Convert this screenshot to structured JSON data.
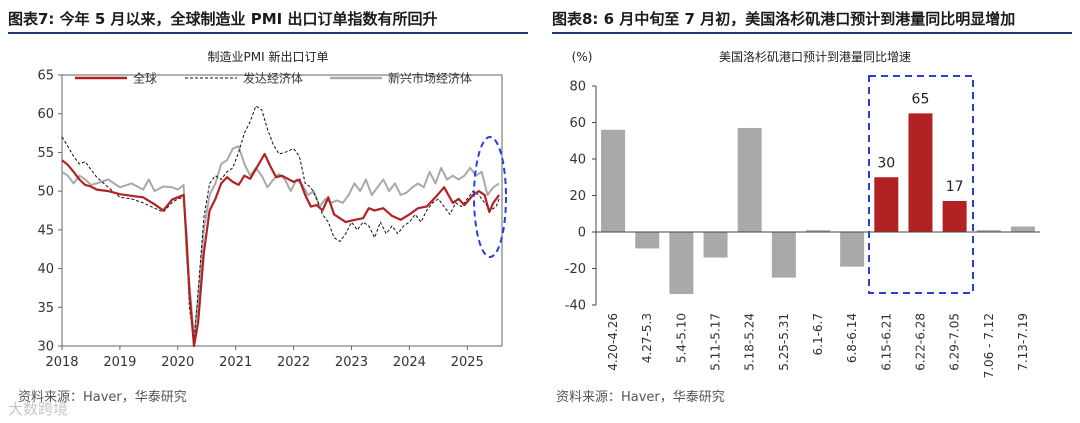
{
  "left_panel": {
    "title": "图表7:   今年 5 月以来，全球制造业 PMI 出口订单指数有所回升",
    "source": "资料来源：Haver，华泰研究"
  },
  "right_panel": {
    "title": "图表8:   6 月中旬至 7 月初，美国洛杉矶港口预计到港量同比明显增加",
    "source": "资料来源：Haver，华泰研究"
  },
  "watermark": "大数跨境",
  "chart_data": [
    {
      "type": "line",
      "title": "制造业PMI 新出口订单",
      "xlabel": "",
      "ylabel": "",
      "ylim": [
        30,
        65
      ],
      "yticks": [
        30,
        35,
        40,
        45,
        50,
        55,
        60,
        65
      ],
      "xlim": [
        2018,
        2025.6
      ],
      "xticks": [
        2018,
        2019,
        2020,
        2021,
        2022,
        2023,
        2024,
        2025
      ],
      "legend_position": "top",
      "annotations": [
        "blue dashed ellipse around 2025 recovery"
      ],
      "series": [
        {
          "name": "全球",
          "color": "#b22222",
          "style": "solid",
          "points": [
            [
              2018.0,
              54.0
            ],
            [
              2018.1,
              53.4
            ],
            [
              2018.2,
              52.5
            ],
            [
              2018.3,
              51.5
            ],
            [
              2018.4,
              50.8
            ],
            [
              2018.5,
              50.6
            ],
            [
              2018.6,
              50.2
            ],
            [
              2018.8,
              50.0
            ],
            [
              2019.0,
              49.6
            ],
            [
              2019.2,
              49.4
            ],
            [
              2019.4,
              49.2
            ],
            [
              2019.6,
              48.3
            ],
            [
              2019.75,
              47.5
            ],
            [
              2019.9,
              48.9
            ],
            [
              2020.0,
              49.2
            ],
            [
              2020.1,
              49.5
            ],
            [
              2020.15,
              44.0
            ],
            [
              2020.2,
              37.0
            ],
            [
              2020.28,
              29.5
            ],
            [
              2020.35,
              33.0
            ],
            [
              2020.45,
              42.0
            ],
            [
              2020.55,
              47.5
            ],
            [
              2020.65,
              49.0
            ],
            [
              2020.75,
              51.0
            ],
            [
              2020.85,
              51.8
            ],
            [
              2020.95,
              51.2
            ],
            [
              2021.05,
              50.8
            ],
            [
              2021.15,
              52.0
            ],
            [
              2021.25,
              51.6
            ],
            [
              2021.4,
              53.5
            ],
            [
              2021.5,
              54.8
            ],
            [
              2021.6,
              53.2
            ],
            [
              2021.7,
              51.8
            ],
            [
              2021.8,
              52.0
            ],
            [
              2021.9,
              51.6
            ],
            [
              2022.0,
              51.2
            ],
            [
              2022.1,
              51.5
            ],
            [
              2022.2,
              49.5
            ],
            [
              2022.3,
              48.0
            ],
            [
              2022.4,
              48.2
            ],
            [
              2022.5,
              47.5
            ],
            [
              2022.6,
              49.2
            ],
            [
              2022.7,
              47.0
            ],
            [
              2022.8,
              46.5
            ],
            [
              2022.9,
              46.0
            ],
            [
              2023.0,
              46.2
            ],
            [
              2023.2,
              46.5
            ],
            [
              2023.3,
              47.8
            ],
            [
              2023.4,
              47.5
            ],
            [
              2023.55,
              47.8
            ],
            [
              2023.7,
              46.8
            ],
            [
              2023.85,
              46.3
            ],
            [
              2024.0,
              47.0
            ],
            [
              2024.15,
              47.8
            ],
            [
              2024.3,
              48.0
            ],
            [
              2024.45,
              49.2
            ],
            [
              2024.6,
              50.5
            ],
            [
              2024.75,
              48.5
            ],
            [
              2024.85,
              49.0
            ],
            [
              2024.95,
              48.2
            ],
            [
              2025.1,
              49.5
            ],
            [
              2025.2,
              50.0
            ],
            [
              2025.3,
              49.5
            ],
            [
              2025.38,
              47.3
            ],
            [
              2025.45,
              48.5
            ],
            [
              2025.55,
              49.5
            ]
          ]
        },
        {
          "name": "发达经济体",
          "color": "#111111",
          "style": "dashed",
          "points": [
            [
              2018.0,
              57.0
            ],
            [
              2018.1,
              55.8
            ],
            [
              2018.2,
              54.5
            ],
            [
              2018.3,
              53.5
            ],
            [
              2018.4,
              53.8
            ],
            [
              2018.5,
              52.8
            ],
            [
              2018.6,
              51.8
            ],
            [
              2018.8,
              50.5
            ],
            [
              2019.0,
              49.2
            ],
            [
              2019.2,
              49.0
            ],
            [
              2019.4,
              48.5
            ],
            [
              2019.6,
              47.8
            ],
            [
              2019.75,
              47.3
            ],
            [
              2019.9,
              48.5
            ],
            [
              2020.0,
              49.0
            ],
            [
              2020.1,
              49.2
            ],
            [
              2020.15,
              43.0
            ],
            [
              2020.2,
              35.0
            ],
            [
              2020.28,
              30.5
            ],
            [
              2020.35,
              37.0
            ],
            [
              2020.45,
              46.5
            ],
            [
              2020.55,
              51.0
            ],
            [
              2020.65,
              52.0
            ],
            [
              2020.75,
              51.5
            ],
            [
              2020.85,
              52.5
            ],
            [
              2020.95,
              53.0
            ],
            [
              2021.05,
              55.0
            ],
            [
              2021.15,
              57.5
            ],
            [
              2021.25,
              59.0
            ],
            [
              2021.35,
              61.0
            ],
            [
              2021.45,
              60.5
            ],
            [
              2021.55,
              58.0
            ],
            [
              2021.65,
              56.0
            ],
            [
              2021.75,
              54.8
            ],
            [
              2021.85,
              55.0
            ],
            [
              2022.0,
              55.5
            ],
            [
              2022.1,
              54.5
            ],
            [
              2022.2,
              51.0
            ],
            [
              2022.3,
              50.5
            ],
            [
              2022.4,
              49.0
            ],
            [
              2022.5,
              47.0
            ],
            [
              2022.6,
              46.0
            ],
            [
              2022.7,
              44.0
            ],
            [
              2022.8,
              43.5
            ],
            [
              2022.9,
              44.5
            ],
            [
              2023.0,
              46.0
            ],
            [
              2023.1,
              45.0
            ],
            [
              2023.2,
              46.0
            ],
            [
              2023.3,
              45.5
            ],
            [
              2023.4,
              44.0
            ],
            [
              2023.5,
              46.0
            ],
            [
              2023.6,
              44.5
            ],
            [
              2023.7,
              45.5
            ],
            [
              2023.8,
              44.5
            ],
            [
              2023.9,
              45.5
            ],
            [
              2024.0,
              46.0
            ],
            [
              2024.1,
              47.0
            ],
            [
              2024.2,
              46.0
            ],
            [
              2024.3,
              47.5
            ],
            [
              2024.4,
              48.5
            ],
            [
              2024.5,
              49.0
            ],
            [
              2024.6,
              48.0
            ],
            [
              2024.7,
              47.0
            ],
            [
              2024.8,
              48.5
            ],
            [
              2024.9,
              48.0
            ],
            [
              2025.0,
              49.0
            ],
            [
              2025.1,
              50.0
            ],
            [
              2025.2,
              49.5
            ],
            [
              2025.3,
              48.5
            ],
            [
              2025.4,
              47.5
            ],
            [
              2025.5,
              48.0
            ],
            [
              2025.55,
              49.0
            ]
          ]
        },
        {
          "name": "新兴市场经济体",
          "color": "#a9a9a9",
          "style": "solid",
          "points": [
            [
              2018.0,
              52.5
            ],
            [
              2018.1,
              52.0
            ],
            [
              2018.2,
              51.0
            ],
            [
              2018.3,
              52.0
            ],
            [
              2018.4,
              51.5
            ],
            [
              2018.5,
              50.8
            ],
            [
              2018.6,
              51.0
            ],
            [
              2018.8,
              51.5
            ],
            [
              2019.0,
              50.5
            ],
            [
              2019.2,
              51.0
            ],
            [
              2019.4,
              50.2
            ],
            [
              2019.5,
              51.5
            ],
            [
              2019.6,
              50.0
            ],
            [
              2019.75,
              50.6
            ],
            [
              2019.9,
              50.5
            ],
            [
              2020.0,
              50.2
            ],
            [
              2020.1,
              50.8
            ],
            [
              2020.15,
              42.0
            ],
            [
              2020.2,
              38.0
            ],
            [
              2020.28,
              31.0
            ],
            [
              2020.35,
              36.0
            ],
            [
              2020.45,
              45.0
            ],
            [
              2020.55,
              49.5
            ],
            [
              2020.65,
              51.0
            ],
            [
              2020.75,
              53.5
            ],
            [
              2020.85,
              54.0
            ],
            [
              2020.95,
              55.5
            ],
            [
              2021.05,
              55.8
            ],
            [
              2021.15,
              53.5
            ],
            [
              2021.25,
              52.0
            ],
            [
              2021.35,
              53.0
            ],
            [
              2021.45,
              52.0
            ],
            [
              2021.55,
              50.5
            ],
            [
              2021.65,
              51.5
            ],
            [
              2021.75,
              52.2
            ],
            [
              2021.85,
              51.5
            ],
            [
              2021.95,
              50.0
            ],
            [
              2022.05,
              51.5
            ],
            [
              2022.15,
              50.8
            ],
            [
              2022.25,
              49.5
            ],
            [
              2022.35,
              50.0
            ],
            [
              2022.45,
              48.0
            ],
            [
              2022.55,
              49.0
            ],
            [
              2022.65,
              48.5
            ],
            [
              2022.75,
              48.8
            ],
            [
              2022.85,
              48.5
            ],
            [
              2022.95,
              49.5
            ],
            [
              2023.05,
              51.0
            ],
            [
              2023.15,
              50.0
            ],
            [
              2023.25,
              51.5
            ],
            [
              2023.35,
              49.5
            ],
            [
              2023.45,
              50.5
            ],
            [
              2023.55,
              51.5
            ],
            [
              2023.65,
              50.0
            ],
            [
              2023.75,
              51.0
            ],
            [
              2023.85,
              49.5
            ],
            [
              2023.95,
              49.8
            ],
            [
              2024.05,
              50.5
            ],
            [
              2024.15,
              51.0
            ],
            [
              2024.25,
              50.5
            ],
            [
              2024.35,
              52.5
            ],
            [
              2024.45,
              51.0
            ],
            [
              2024.55,
              53.0
            ],
            [
              2024.65,
              51.5
            ],
            [
              2024.75,
              52.0
            ],
            [
              2024.85,
              51.5
            ],
            [
              2024.95,
              52.0
            ],
            [
              2025.05,
              53.0
            ],
            [
              2025.15,
              52.0
            ],
            [
              2025.25,
              52.5
            ],
            [
              2025.35,
              49.5
            ],
            [
              2025.45,
              50.5
            ],
            [
              2025.55,
              51.0
            ]
          ]
        }
      ]
    },
    {
      "type": "bar",
      "title": "美国洛杉矶港口预计到港量同比增速",
      "ylabel": "(%)",
      "ylim": [
        -40,
        80
      ],
      "yticks": [
        -40,
        -20,
        0,
        20,
        40,
        60,
        80
      ],
      "categories": [
        "4.20-4.26",
        "4.27-5.3",
        "5.4-5.10",
        "5.11-5.17",
        "5.18-5.24",
        "5.25-5.31",
        "6.1-6.7",
        "6.8-6.14",
        "6.15-6.21",
        "6.22-6.28",
        "6.29-7.05",
        "7.06 - 7.12",
        "7.13-7.19"
      ],
      "values": [
        56,
        -9,
        -34,
        -14,
        57,
        -25,
        1,
        -19,
        30,
        65,
        17,
        1,
        3
      ],
      "highlighted": [
        false,
        false,
        false,
        false,
        false,
        false,
        false,
        false,
        true,
        true,
        true,
        false,
        false
      ],
      "data_labels": [
        "",
        "",
        "",
        "",
        "",
        "",
        "",
        "",
        "30",
        "65",
        "17",
        "",
        ""
      ],
      "colors": {
        "normal": "#a9a9a9",
        "highlight": "#b22222"
      },
      "annotations": [
        "blue dashed box around 6.15-6.21 to 6.29-7.05"
      ]
    }
  ]
}
